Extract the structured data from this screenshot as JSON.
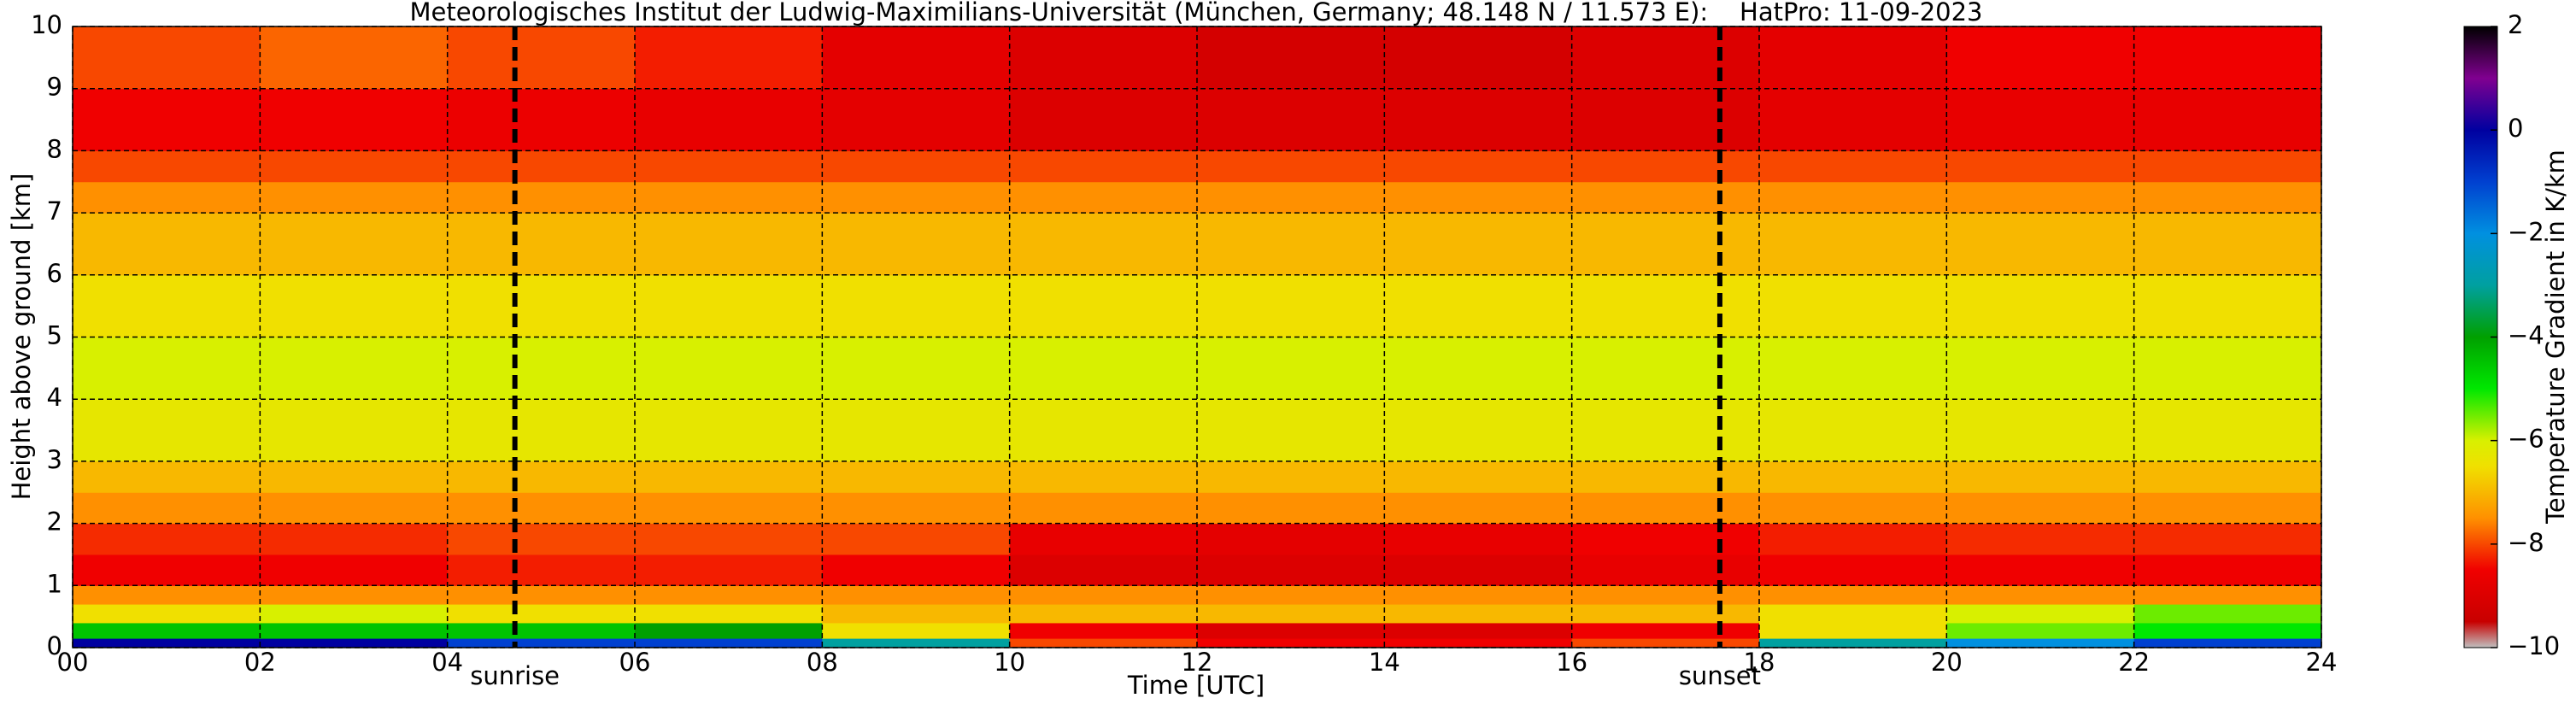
{
  "chart_data": {
    "type": "heatmap",
    "title": "Meteorologisches Institut der Ludwig-Maximilians-Universität (München, Germany; 48.148 N / 11.573 E):    HatPro: 11-09-2023",
    "x_label": "Time [UTC]",
    "y_label": "Height above ground [km]",
    "colorbar_label": "Temperature Gradient in K/km",
    "xlim": [
      0,
      24
    ],
    "ylim": [
      0,
      10
    ],
    "clim": [
      -10,
      2
    ],
    "xticks": [
      {
        "value": 0,
        "label": "00"
      },
      {
        "value": 2,
        "label": "02"
      },
      {
        "value": 4,
        "label": "04"
      },
      {
        "value": 6,
        "label": "06"
      },
      {
        "value": 8,
        "label": "08"
      },
      {
        "value": 10,
        "label": "10"
      },
      {
        "value": 12,
        "label": "12"
      },
      {
        "value": 14,
        "label": "14"
      },
      {
        "value": 16,
        "label": "16"
      },
      {
        "value": 18,
        "label": "18"
      },
      {
        "value": 20,
        "label": "20"
      },
      {
        "value": 22,
        "label": "22"
      },
      {
        "value": 24,
        "label": "24"
      }
    ],
    "yticks": [
      0,
      1,
      2,
      3,
      4,
      5,
      6,
      7,
      8,
      9,
      10
    ],
    "cticks": [
      {
        "value": -10,
        "label": "−10"
      },
      {
        "value": -8,
        "label": "−8"
      },
      {
        "value": -6,
        "label": "−6"
      },
      {
        "value": -4,
        "label": "−4"
      },
      {
        "value": -2,
        "label": "−2"
      },
      {
        "value": 0,
        "label": "0"
      },
      {
        "value": 2,
        "label": "2"
      }
    ],
    "grid": true,
    "colormap": [
      {
        "value": -10,
        "color": "#c0c0c0"
      },
      {
        "value": -9.5,
        "color": "#c80000"
      },
      {
        "value": -8.5,
        "color": "#f00000"
      },
      {
        "value": -7.5,
        "color": "#ff9000"
      },
      {
        "value": -6.5,
        "color": "#f0e000"
      },
      {
        "value": -6,
        "color": "#d8f000"
      },
      {
        "value": -5,
        "color": "#00e800"
      },
      {
        "value": -4,
        "color": "#00a000"
      },
      {
        "value": -3,
        "color": "#00a0a0"
      },
      {
        "value": -2,
        "color": "#0090e0"
      },
      {
        "value": -1,
        "color": "#0040d0"
      },
      {
        "value": 0,
        "color": "#0000a0"
      },
      {
        "value": 1,
        "color": "#800090"
      },
      {
        "value": 2,
        "color": "#000000"
      }
    ],
    "x_edges": [
      0,
      2,
      4,
      6,
      8,
      10,
      12,
      14,
      16,
      18,
      20,
      22,
      24
    ],
    "y_edges": [
      0,
      0.15,
      0.4,
      0.7,
      1,
      1.5,
      2,
      2.5,
      3,
      4,
      5,
      6,
      7,
      7.5,
      8,
      9,
      10
    ],
    "z": [
      [
        0,
        0,
        -1,
        -1,
        -3,
        -8,
        -8.5,
        -8.5,
        -8,
        -3,
        -2,
        -1
      ],
      [
        -4.5,
        -4.5,
        -4.5,
        -4,
        -6.5,
        -8.5,
        -9,
        -9,
        -8.5,
        -6.5,
        -5.5,
        -5
      ],
      [
        -6.5,
        -6,
        -6.5,
        -6.5,
        -7,
        -7,
        -7,
        -7,
        -7,
        -6.5,
        -6,
        -5.5
      ],
      [
        -7.5,
        -7.5,
        -7.5,
        -7.5,
        -7.5,
        -7.5,
        -7.5,
        -7.5,
        -7.5,
        -7.5,
        -7.5,
        -7.5
      ],
      [
        -8.5,
        -8.5,
        -8.3,
        -8.3,
        -8.5,
        -9,
        -9,
        -9,
        -8.7,
        -8.5,
        -8.5,
        -8.5
      ],
      [
        -8.2,
        -8.2,
        -8,
        -8,
        -8,
        -8.7,
        -8.8,
        -8.7,
        -8.5,
        -8.3,
        -8.2,
        -8.2
      ],
      [
        -7.5,
        -7.5,
        -7.5,
        -7.5,
        -7.5,
        -7.5,
        -7.5,
        -7.5,
        -7.5,
        -7.5,
        -7.5,
        -7.5
      ],
      [
        -7,
        -7,
        -7,
        -7,
        -7,
        -7,
        -7,
        -7,
        -7,
        -7,
        -7,
        -7
      ],
      [
        -6.3,
        -6.3,
        -6.3,
        -6.3,
        -6.3,
        -6.3,
        -6.3,
        -6.3,
        -6.3,
        -6.3,
        -6.3,
        -6.3
      ],
      [
        -6,
        -6,
        -6,
        -6,
        -6,
        -6,
        -6,
        -6,
        -6,
        -6,
        -6,
        -6
      ],
      [
        -6.5,
        -6.5,
        -6.5,
        -6.5,
        -6.5,
        -6.5,
        -6.5,
        -6.5,
        -6.5,
        -6.5,
        -6.5,
        -6.5
      ],
      [
        -7,
        -7,
        -7,
        -7,
        -7,
        -7,
        -7,
        -7,
        -7,
        -7,
        -7,
        -7
      ],
      [
        -7.5,
        -7.5,
        -7.5,
        -7.5,
        -7.5,
        -7.5,
        -7.5,
        -7.5,
        -7.5,
        -7.5,
        -7.5,
        -7.5
      ],
      [
        -8,
        -8,
        -8,
        -8,
        -8,
        -8,
        -8,
        -8,
        -8,
        -8,
        -8,
        -8
      ],
      [
        -8.5,
        -8.5,
        -8.6,
        -8.7,
        -8.8,
        -9,
        -9,
        -9,
        -9,
        -8.8,
        -8.7,
        -8.7
      ],
      [
        -8,
        -7.8,
        -8,
        -8.3,
        -8.8,
        -9,
        -9.2,
        -9.2,
        -9,
        -8.8,
        -8.5,
        -8.5
      ]
    ],
    "annotations": [
      {
        "x": 4.72,
        "label": "sunrise"
      },
      {
        "x": 17.58,
        "label": "sunset"
      }
    ]
  }
}
